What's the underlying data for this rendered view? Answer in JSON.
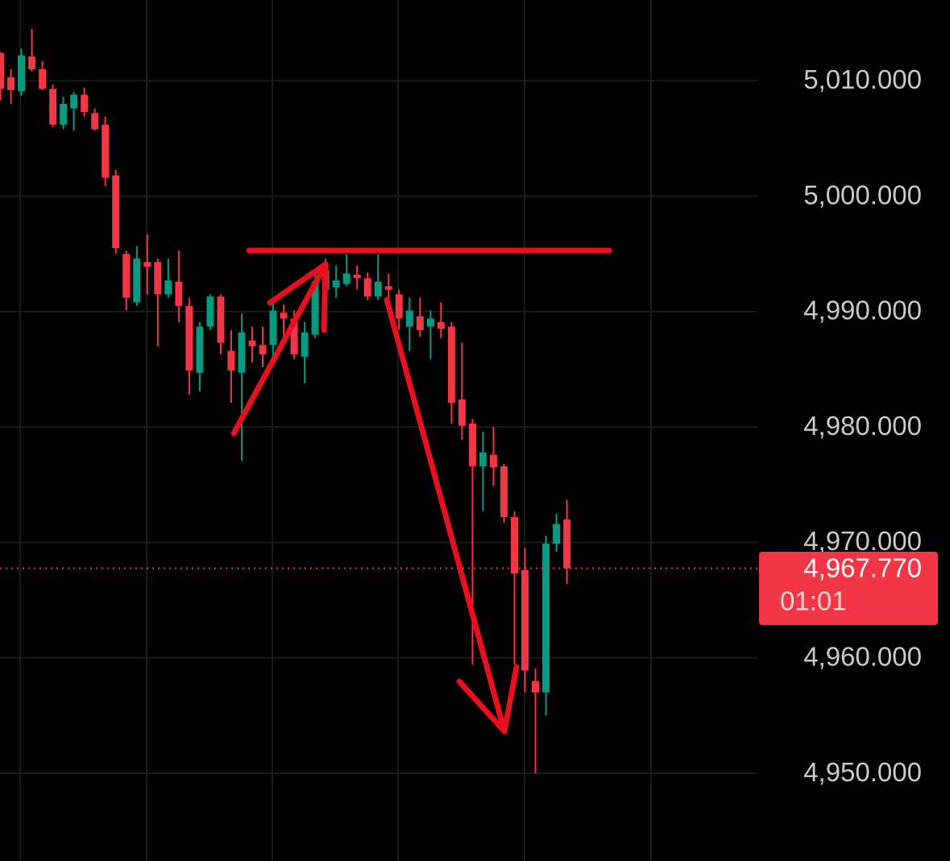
{
  "chart_data": {
    "type": "candlestick",
    "categories": [
      null,
      null,
      null,
      null,
      null,
      null,
      null,
      null,
      null,
      null,
      null,
      null,
      null,
      null,
      null,
      null,
      null,
      null,
      null,
      null,
      null,
      null,
      null,
      null,
      null,
      null,
      null,
      null,
      null,
      null,
      null,
      null,
      null,
      null,
      null,
      null,
      null,
      null,
      null,
      null,
      null,
      null,
      null,
      null,
      null,
      null,
      null,
      null,
      null,
      null,
      null,
      null,
      null,
      null,
      null
    ],
    "open": [
      5012.4,
      5010.3,
      5009.1,
      5012.1,
      5011.0,
      5009.3,
      5006.2,
      5007.6,
      5008.8,
      5007.2,
      5006.2,
      5001.8,
      4995.0,
      4990.8,
      4994.3,
      4994.3,
      4991.5,
      4992.6,
      4990.5,
      4984.7,
      4988.7,
      4991.3,
      4986.6,
      4984.7,
      4987.5,
      4987.1,
      4987.1,
      4989.9,
      4989.4,
      4986.1,
      4988.0,
      4991.9,
      4992.1,
      4992.4,
      4993.2,
      4992.9,
      4991.3,
      4992.2,
      4991.5,
      4988.7,
      4989.6,
      4988.7,
      4989.1,
      4988.7,
      4982.4,
      4980.3,
      4976.6,
      4977.6,
      4976.6,
      4972.2,
      4967.6,
      4958.0,
      4957.0,
      4969.9,
      4972.0
    ],
    "high": [
      5012.5,
      5011.0,
      5012.8,
      5014.5,
      5011.7,
      5009.7,
      5008.6,
      5009.0,
      5009.4,
      5007.6,
      5006.9,
      5002.3,
      4995.3,
      4995.7,
      4996.7,
      4994.6,
      4994.6,
      4995.3,
      4991.2,
      4989.1,
      4991.5,
      4991.5,
      4988.4,
      4989.8,
      4988.7,
      4988.7,
      4990.8,
      4990.6,
      4990.1,
      4989.1,
      4993.3,
      4994.6,
      4994.0,
      4995.0,
      4994.0,
      4993.4,
      4995.0,
      4993.3,
      4991.9,
      4991.2,
      4991.2,
      4990.1,
      4990.8,
      4989.1,
      4987.3,
      4980.7,
      4979.6,
      4980.0,
      4976.8,
      4972.7,
      4969.5,
      4959.1,
      4970.6,
      4972.5,
      4973.7
    ],
    "low": [
      5008.3,
      5008.0,
      5008.7,
      5010.8,
      5009.2,
      5006.0,
      5005.8,
      5005.7,
      5006.9,
      5005.7,
      5000.9,
      4995.0,
      4990.1,
      4990.5,
      4991.5,
      4987.0,
      4991.2,
      4989.1,
      4982.8,
      4983.1,
      4988.4,
      4986.3,
      4982.1,
      4977.1,
      4985.6,
      4985.2,
      4985.6,
      4987.0,
      4985.9,
      4983.8,
      4987.7,
      4989.4,
      4991.2,
      4992.2,
      4991.9,
      4991.0,
      4991.0,
      4990.1,
      4988.4,
      4986.6,
      4987.8,
      4985.9,
      4987.7,
      4980.3,
      4978.9,
      4959.4,
      4972.7,
      4974.9,
      4971.7,
      4959.4,
      4957.0,
      4950.0,
      4955.0,
      4969.2,
      4966.4
    ],
    "close": [
      5009.3,
      5009.2,
      5012.2,
      5011.0,
      5009.3,
      5006.2,
      5008.0,
      5008.8,
      5007.3,
      5005.8,
      5001.6,
      4995.5,
      4991.2,
      4994.6,
      4993.9,
      4991.5,
      4992.7,
      4990.5,
      4984.9,
      4988.7,
      4991.3,
      4987.3,
      4984.9,
      4988.2,
      4987.0,
      4986.3,
      4990.1,
      4989.4,
      4986.3,
      4988.2,
      4992.6,
      4993.6,
      4992.7,
      4993.3,
      4992.9,
      4991.3,
      4992.6,
      4991.9,
      4989.4,
      4990.1,
      4988.4,
      4989.4,
      4988.5,
      4982.1,
      4980.1,
      4976.6,
      4977.8,
      4976.5,
      4972.2,
      4967.3,
      4958.9,
      4957.0,
      4969.9,
      4971.6,
      4967.77
    ],
    "up_color": "#089981",
    "down_color": "#f23645",
    "ylim": [
      4942.4,
      5017.0
    ],
    "yticks": [
      {
        "value": 4950,
        "label": "4,950.000"
      },
      {
        "value": 4960,
        "label": "4,960.000"
      },
      {
        "value": 4970,
        "label": "4,970.000"
      },
      {
        "value": 4980,
        "label": "4,980.000"
      },
      {
        "value": 4990,
        "label": "4,990.000"
      },
      {
        "value": 5000,
        "label": "5,000.000"
      },
      {
        "value": 5010,
        "label": "5,010.000"
      }
    ],
    "grid": true,
    "last_price": {
      "value": 4967.77,
      "label": "4,967.770"
    },
    "countdown": "01:01"
  }
}
